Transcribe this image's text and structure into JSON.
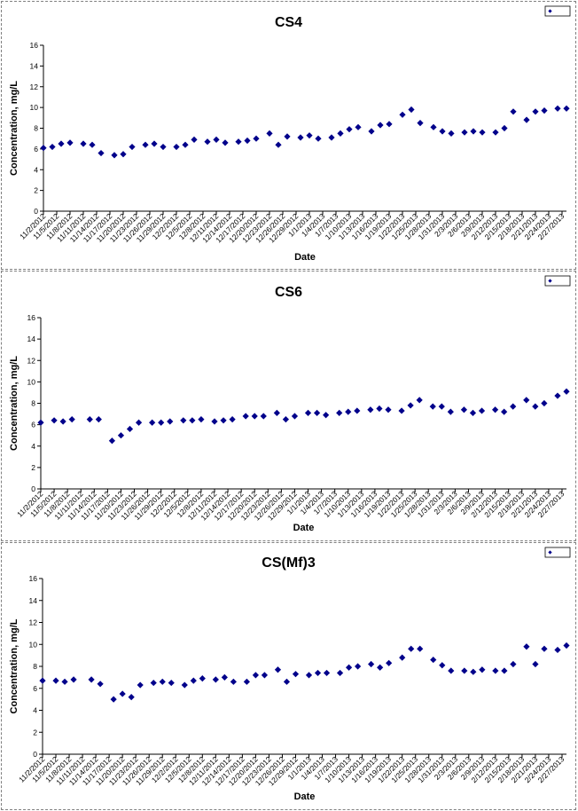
{
  "colors": {
    "marker": "#00008B",
    "axis": "#000000",
    "panel_border": "#808080"
  },
  "chart_data": [
    {
      "type": "scatter",
      "title": "CS4",
      "xlabel": "Date",
      "ylabel": "Concentration, mg/L",
      "ylim": [
        0,
        16
      ],
      "yticks": [
        "0",
        "2",
        "4",
        "6",
        "8",
        "10",
        "12",
        "14",
        "16"
      ],
      "xlim": [
        "11/2/2012",
        "2/28/2013"
      ],
      "xticks": [
        "11/2/2012",
        "11/5/2012",
        "11/8/2012",
        "11/11/2012",
        "11/14/2012",
        "11/17/2012",
        "11/20/2012",
        "11/23/2012",
        "11/26/2012",
        "11/29/2012",
        "12/2/2012",
        "12/5/2012",
        "12/8/2012",
        "12/11/2012",
        "12/14/2012",
        "12/17/2012",
        "12/20/2012",
        "12/23/2012",
        "12/26/2012",
        "12/29/2012",
        "1/1/2013",
        "1/4/2013",
        "1/7/2013",
        "1/10/2013",
        "1/13/2013",
        "1/16/2013",
        "1/19/2013",
        "1/22/2013",
        "1/25/2013",
        "1/28/2013",
        "1/31/2013",
        "2/3/2013",
        "2/6/2013",
        "2/9/2013",
        "2/12/2013",
        "2/15/2013",
        "2/18/2013",
        "2/21/2013",
        "2/24/2013",
        "2/27/2013"
      ],
      "grid": false,
      "legend": "top-right",
      "series": [
        {
          "x": [
            "11/2/2012",
            "11/4/2012",
            "11/6/2012",
            "11/8/2012",
            "11/11/2012",
            "11/13/2012",
            "11/15/2012",
            "11/18/2012",
            "11/20/2012",
            "11/22/2012",
            "11/25/2012",
            "11/27/2012",
            "11/29/2012",
            "12/2/2012",
            "12/4/2012",
            "12/6/2012",
            "12/9/2012",
            "12/11/2012",
            "12/13/2012",
            "12/16/2012",
            "12/18/2012",
            "12/20/2012",
            "12/23/2012",
            "12/25/2012",
            "12/27/2012",
            "12/30/2012",
            "1/1/2013",
            "1/3/2013",
            "1/6/2013",
            "1/8/2013",
            "1/10/2013",
            "1/12/2013",
            "1/15/2013",
            "1/17/2013",
            "1/19/2013",
            "1/22/2013",
            "1/24/2013",
            "1/26/2013",
            "1/29/2013",
            "1/31/2013",
            "2/2/2013",
            "2/5/2013",
            "2/7/2013",
            "2/9/2013",
            "2/12/2013",
            "2/14/2013",
            "2/16/2013",
            "2/19/2013",
            "2/21/2013",
            "2/23/2013",
            "2/26/2013",
            "2/28/2013"
          ],
          "y": [
            6.1,
            6.2,
            6.5,
            6.6,
            6.5,
            6.4,
            5.6,
            5.4,
            5.5,
            6.2,
            6.4,
            6.5,
            6.2,
            6.2,
            6.4,
            6.9,
            6.7,
            6.9,
            6.6,
            6.7,
            6.8,
            7.0,
            7.5,
            6.4,
            7.2,
            7.1,
            7.3,
            7.0,
            7.1,
            7.5,
            7.9,
            8.1,
            7.7,
            8.3,
            8.4,
            9.3,
            9.8,
            8.5,
            8.1,
            7.7,
            7.5,
            7.6,
            7.7,
            7.6,
            7.6,
            8.0,
            9.6,
            8.8,
            9.6,
            9.7,
            9.9,
            9.9
          ]
        }
      ]
    },
    {
      "type": "scatter",
      "title": "CS6",
      "xlabel": "Date",
      "ylabel": "Concentration, mg/L",
      "ylim": [
        0,
        16
      ],
      "yticks": [
        "0",
        "2",
        "4",
        "6",
        "8",
        "10",
        "12",
        "14",
        "16"
      ],
      "xlim": [
        "11/2/2012",
        "2/28/2013"
      ],
      "xticks": [
        "11/2/2012",
        "11/5/2012",
        "11/8/2012",
        "11/11/2012",
        "11/14/2012",
        "11/17/2012",
        "11/20/2012",
        "11/23/2012",
        "11/26/2012",
        "11/29/2012",
        "12/2/2012",
        "12/5/2012",
        "12/8/2012",
        "12/11/2012",
        "12/14/2012",
        "12/17/2012",
        "12/20/2012",
        "12/23/2012",
        "12/26/2012",
        "12/29/2012",
        "1/1/2013",
        "1/4/2013",
        "1/7/2013",
        "1/10/2013",
        "1/13/2013",
        "1/16/2013",
        "1/19/2013",
        "1/22/2013",
        "1/25/2013",
        "1/28/2013",
        "1/31/2013",
        "2/3/2013",
        "2/6/2013",
        "2/9/2013",
        "2/12/2013",
        "2/15/2013",
        "2/18/2013",
        "2/21/2013",
        "2/24/2013",
        "2/27/2013"
      ],
      "grid": false,
      "legend": "top-right",
      "series": [
        {
          "x": [
            "11/2/2012",
            "11/5/2012",
            "11/7/2012",
            "11/9/2012",
            "11/13/2012",
            "11/15/2012",
            "11/18/2012",
            "11/20/2012",
            "11/22/2012",
            "11/24/2012",
            "11/27/2012",
            "11/29/2012",
            "12/1/2012",
            "12/4/2012",
            "12/6/2012",
            "12/8/2012",
            "12/11/2012",
            "12/13/2012",
            "12/15/2012",
            "12/18/2012",
            "12/20/2012",
            "12/22/2012",
            "12/25/2012",
            "12/27/2012",
            "12/29/2012",
            "1/1/2013",
            "1/3/2013",
            "1/5/2013",
            "1/8/2013",
            "1/10/2013",
            "1/12/2013",
            "1/15/2013",
            "1/17/2013",
            "1/19/2013",
            "1/22/2013",
            "1/24/2013",
            "1/26/2013",
            "1/29/2013",
            "1/31/2013",
            "2/2/2013",
            "2/5/2013",
            "2/7/2013",
            "2/9/2013",
            "2/12/2013",
            "2/14/2013",
            "2/16/2013",
            "2/19/2013",
            "2/21/2013",
            "2/23/2013",
            "2/26/2013",
            "2/28/2013"
          ],
          "y": [
            6.2,
            6.4,
            6.3,
            6.5,
            6.5,
            6.5,
            4.5,
            5.0,
            5.6,
            6.2,
            6.2,
            6.2,
            6.3,
            6.4,
            6.4,
            6.5,
            6.3,
            6.4,
            6.5,
            6.8,
            6.8,
            6.8,
            7.1,
            6.5,
            6.8,
            7.1,
            7.1,
            6.9,
            7.1,
            7.2,
            7.3,
            7.4,
            7.5,
            7.4,
            7.3,
            7.8,
            8.3,
            7.7,
            7.7,
            7.2,
            7.4,
            7.1,
            7.3,
            7.4,
            7.2,
            7.7,
            8.3,
            7.7,
            8.0,
            8.7,
            9.1
          ]
        }
      ]
    },
    {
      "type": "scatter",
      "title": "CS(Mf)3",
      "xlabel": "Date",
      "ylabel": "Concentration, mg/L",
      "ylim": [
        0,
        16
      ],
      "yticks": [
        "0",
        "2",
        "4",
        "6",
        "8",
        "10",
        "12",
        "14",
        "16"
      ],
      "xlim": [
        "11/2/2012",
        "2/28/2013"
      ],
      "xticks": [
        "11/2/2012",
        "11/5/2012",
        "11/8/2012",
        "11/11/2012",
        "11/14/2012",
        "11/17/2012",
        "11/20/2012",
        "11/23/2012",
        "11/26/2012",
        "11/29/2012",
        "12/2/2012",
        "12/5/2012",
        "12/8/2012",
        "12/11/2012",
        "12/14/2012",
        "12/17/2012",
        "12/20/2012",
        "12/23/2012",
        "12/26/2012",
        "12/29/2012",
        "1/1/2013",
        "1/4/2013",
        "1/7/2013",
        "1/10/2013",
        "1/13/2013",
        "1/16/2013",
        "1/19/2013",
        "1/22/2013",
        "1/25/2013",
        "1/28/2013",
        "1/31/2013",
        "2/3/2013",
        "2/6/2013",
        "2/9/2013",
        "2/12/2013",
        "2/15/2013",
        "2/18/2013",
        "2/21/2013",
        "2/24/2013",
        "2/27/2013"
      ],
      "grid": false,
      "legend": "top-right",
      "series": [
        {
          "x": [
            "11/2/2012",
            "11/5/2012",
            "11/7/2012",
            "11/9/2012",
            "11/13/2012",
            "11/15/2012",
            "11/18/2012",
            "11/20/2012",
            "11/22/2012",
            "11/24/2012",
            "11/27/2012",
            "11/29/2012",
            "12/1/2012",
            "12/4/2012",
            "12/6/2012",
            "12/8/2012",
            "12/11/2012",
            "12/13/2012",
            "12/15/2012",
            "12/18/2012",
            "12/20/2012",
            "12/22/2012",
            "12/25/2012",
            "12/27/2012",
            "12/29/2012",
            "1/1/2013",
            "1/3/2013",
            "1/5/2013",
            "1/8/2013",
            "1/10/2013",
            "1/12/2013",
            "1/15/2013",
            "1/17/2013",
            "1/19/2013",
            "1/22/2013",
            "1/24/2013",
            "1/26/2013",
            "1/29/2013",
            "1/31/2013",
            "2/2/2013",
            "2/5/2013",
            "2/7/2013",
            "2/9/2013",
            "2/12/2013",
            "2/14/2013",
            "2/16/2013",
            "2/19/2013",
            "2/21/2013",
            "2/23/2013",
            "2/26/2013",
            "2/28/2013"
          ],
          "y": [
            6.7,
            6.7,
            6.6,
            6.8,
            6.8,
            6.4,
            5.0,
            5.5,
            5.2,
            6.3,
            6.5,
            6.6,
            6.5,
            6.3,
            6.7,
            6.9,
            6.8,
            7.0,
            6.6,
            6.6,
            7.2,
            7.2,
            7.7,
            6.6,
            7.3,
            7.2,
            7.4,
            7.4,
            7.4,
            7.9,
            8.0,
            8.2,
            7.9,
            8.3,
            8.8,
            9.6,
            9.6,
            8.6,
            8.1,
            7.6,
            7.6,
            7.5,
            7.7,
            7.6,
            7.6,
            8.2,
            9.8,
            8.2,
            9.6,
            9.5,
            9.9
          ]
        }
      ]
    }
  ]
}
